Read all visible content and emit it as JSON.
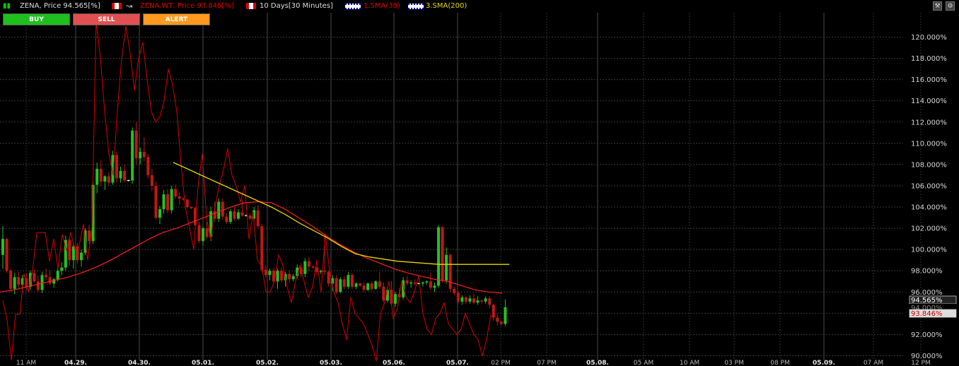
{
  "header": {
    "symbol_label": "ZENA, Price 94.565[%]",
    "compare_label": "ZENA.WT, Price 93.846[%]",
    "period_label": "10 Days[30 Minutes]",
    "indicator1_label": "1.SMA(38)",
    "indicator2_label": "3.SMA(200)",
    "colors": {
      "symbol": "#dddddd",
      "compare": "#e00000",
      "sma38": "#e00000",
      "sma200": "#e6d600"
    }
  },
  "buttons": {
    "buy": "BUY",
    "sell": "SELL",
    "alert": "ALERT"
  },
  "tools": {
    "wrench": "wrench-icon",
    "settings": "settings-icon"
  },
  "chart_data": {
    "type": "line",
    "y_unit": "%",
    "ylim": [
      89.5,
      121.5
    ],
    "y_ticks": [
      "90.000%",
      "92.000%",
      "94.000%",
      "96.000%",
      "98.000%",
      "100.000%",
      "102.000%",
      "104.000%",
      "106.000%",
      "108.000%",
      "110.000%",
      "112.000%",
      "114.000%",
      "116.000%",
      "118.000%",
      "120.000%"
    ],
    "x_ticks": [
      "11 AM",
      "04.29.",
      "04.30.",
      "05.01.",
      "05.02.",
      "05.03.",
      "05.06.",
      "05.07.",
      "02 PM",
      "07 PM",
      "05.08.",
      "05 AM",
      "10 AM",
      "03 PM",
      "08 PM",
      "05.09.",
      "07 AM",
      "12 PM"
    ],
    "grid": true,
    "last_price_labels": [
      "94.565%",
      "94.000%",
      "93.846%"
    ],
    "candles": [
      [
        99.5,
        102.2,
        98.2,
        101.0
      ],
      [
        101.0,
        101.1,
        97.8,
        98.0
      ],
      [
        98.0,
        98.2,
        96.0,
        96.3
      ],
      [
        96.3,
        97.8,
        95.8,
        97.4
      ],
      [
        97.4,
        97.9,
        96.4,
        96.7
      ],
      [
        96.7,
        97.6,
        96.0,
        97.3
      ],
      [
        97.3,
        97.8,
        96.2,
        96.5
      ],
      [
        96.5,
        98.0,
        96.2,
        97.8
      ],
      [
        97.8,
        98.1,
        96.9,
        97.0
      ],
      [
        97.0,
        97.5,
        96.0,
        96.2
      ],
      [
        96.2,
        97.9,
        95.9,
        97.6
      ],
      [
        97.6,
        98.2,
        97.1,
        97.4
      ],
      [
        97.4,
        98.0,
        96.6,
        96.8
      ],
      [
        96.8,
        97.3,
        96.4,
        97.2
      ],
      [
        97.2,
        98.3,
        97.0,
        98.0
      ],
      [
        98.0,
        98.8,
        97.6,
        98.3
      ],
      [
        98.3,
        101.3,
        98.0,
        100.9
      ],
      [
        100.9,
        101.2,
        98.5,
        99.0
      ],
      [
        99.0,
        100.5,
        98.2,
        100.3
      ],
      [
        100.3,
        100.6,
        98.7,
        99.0
      ],
      [
        99.0,
        100.0,
        98.4,
        99.7
      ],
      [
        99.7,
        102.0,
        99.5,
        101.8
      ],
      [
        101.8,
        102.3,
        100.5,
        100.8
      ],
      [
        100.8,
        106.4,
        100.5,
        106.1
      ],
      [
        106.1,
        108.2,
        105.3,
        107.6
      ],
      [
        107.6,
        108.4,
        106.0,
        106.4
      ],
      [
        106.4,
        107.0,
        105.6,
        106.9
      ],
      [
        106.9,
        107.3,
        106.0,
        106.3
      ],
      [
        106.3,
        109.3,
        106.1,
        108.9
      ],
      [
        108.9,
        109.2,
        106.3,
        106.7
      ],
      [
        106.7,
        107.8,
        106.3,
        107.4
      ],
      [
        107.4,
        108.0,
        106.3,
        106.5
      ],
      [
        106.5,
        106.6,
        106.4,
        106.5
      ],
      [
        106.5,
        111.5,
        106.2,
        111.2
      ],
      [
        111.2,
        112.0,
        108.0,
        108.6
      ],
      [
        108.6,
        109.6,
        108.0,
        109.2
      ],
      [
        109.2,
        110.6,
        108.3,
        108.7
      ],
      [
        108.7,
        109.0,
        106.7,
        107.0
      ],
      [
        107.0,
        107.6,
        105.5,
        106.0
      ],
      [
        106.0,
        106.4,
        102.8,
        103.0
      ],
      [
        103.0,
        104.1,
        102.4,
        103.8
      ],
      [
        103.8,
        105.6,
        103.4,
        105.2
      ],
      [
        105.2,
        105.7,
        103.4,
        103.7
      ],
      [
        103.7,
        106.0,
        103.4,
        105.7
      ],
      [
        105.7,
        106.1,
        104.8,
        105.0
      ],
      [
        105.0,
        105.4,
        104.2,
        104.8
      ],
      [
        104.8,
        104.9,
        104.6,
        104.7
      ],
      [
        104.7,
        104.8,
        103.9,
        104.0
      ],
      [
        104.0,
        104.1,
        103.8,
        103.9
      ],
      [
        103.9,
        104.0,
        102.1,
        102.3
      ],
      [
        102.3,
        102.6,
        100.6,
        100.8
      ],
      [
        100.8,
        102.2,
        100.4,
        102.0
      ],
      [
        102.0,
        102.6,
        101.0,
        101.2
      ],
      [
        101.2,
        104.0,
        100.8,
        103.6
      ],
      [
        103.6,
        104.5,
        102.6,
        102.9
      ],
      [
        102.9,
        104.8,
        102.6,
        104.5
      ],
      [
        104.5,
        104.8,
        102.8,
        103.1
      ],
      [
        103.1,
        103.4,
        102.4,
        102.6
      ],
      [
        102.6,
        103.8,
        102.4,
        103.6
      ],
      [
        103.6,
        104.0,
        102.7,
        102.9
      ],
      [
        102.9,
        103.8,
        102.8,
        103.5
      ],
      [
        103.5,
        104.6,
        103.1,
        103.2
      ],
      [
        103.2,
        103.3,
        103.1,
        103.2
      ],
      [
        103.2,
        103.4,
        102.8,
        102.9
      ],
      [
        102.9,
        104.0,
        102.6,
        103.7
      ],
      [
        103.7,
        104.2,
        102.0,
        102.2
      ],
      [
        102.2,
        102.4,
        97.9,
        98.1
      ],
      [
        98.1,
        98.5,
        97.3,
        97.6
      ],
      [
        97.6,
        98.2,
        97.1,
        98.0
      ],
      [
        98.0,
        98.3,
        96.8,
        97.0
      ],
      [
        97.0,
        98.2,
        96.3,
        98.0
      ],
      [
        98.0,
        98.3,
        96.9,
        97.1
      ],
      [
        97.1,
        97.9,
        96.5,
        97.7
      ],
      [
        97.7,
        98.0,
        96.9,
        97.2
      ],
      [
        97.2,
        97.7,
        97.0,
        97.5
      ],
      [
        97.5,
        98.6,
        97.3,
        98.3
      ],
      [
        98.3,
        98.7,
        97.4,
        97.7
      ],
      [
        97.7,
        99.2,
        97.4,
        98.9
      ],
      [
        98.9,
        99.3,
        98.0,
        98.4
      ],
      [
        98.4,
        98.5,
        98.2,
        98.3
      ],
      [
        98.3,
        98.4,
        97.6,
        97.9
      ],
      [
        97.9,
        98.1,
        97.7,
        98.0
      ],
      [
        98.0,
        101.5,
        97.6,
        97.9
      ],
      [
        97.9,
        98.0,
        96.5,
        96.8
      ],
      [
        96.8,
        97.6,
        96.1,
        97.3
      ],
      [
        97.3,
        97.6,
        95.8,
        96.0
      ],
      [
        96.0,
        97.4,
        95.9,
        97.2
      ],
      [
        97.2,
        97.5,
        96.3,
        96.5
      ],
      [
        96.5,
        97.9,
        96.3,
        97.6
      ],
      [
        97.6,
        97.8,
        96.3,
        96.5
      ],
      [
        96.5,
        96.9,
        96.3,
        96.8
      ],
      [
        96.8,
        96.9,
        96.5,
        96.6
      ],
      [
        96.6,
        96.9,
        96.0,
        96.2
      ],
      [
        96.2,
        96.9,
        96.1,
        96.8
      ],
      [
        96.8,
        97.0,
        96.1,
        96.3
      ],
      [
        96.3,
        97.1,
        96.2,
        97.0
      ],
      [
        97.0,
        97.9,
        96.3,
        96.5
      ],
      [
        96.5,
        96.9,
        95.0,
        95.2
      ],
      [
        95.2,
        96.4,
        95.0,
        96.2
      ],
      [
        96.2,
        97.0,
        94.7,
        94.9
      ],
      [
        94.9,
        96.0,
        94.6,
        95.8
      ],
      [
        95.8,
        96.4,
        95.3,
        95.5
      ],
      [
        95.5,
        97.4,
        95.3,
        97.1
      ],
      [
        97.1,
        97.5,
        96.6,
        96.8
      ],
      [
        96.8,
        97.1,
        96.4,
        96.9
      ],
      [
        96.9,
        97.2,
        96.6,
        96.8
      ],
      [
        96.8,
        96.9,
        96.7,
        96.8
      ],
      [
        96.8,
        97.0,
        96.5,
        96.9
      ],
      [
        96.9,
        97.1,
        96.7,
        97.0
      ],
      [
        97.0,
        97.8,
        96.2,
        96.4
      ],
      [
        96.4,
        96.9,
        96.0,
        96.6
      ],
      [
        96.6,
        102.3,
        96.4,
        102.1
      ],
      [
        102.1,
        102.2,
        96.9,
        97.1
      ],
      [
        97.1,
        100.2,
        96.8,
        99.5
      ],
      [
        99.5,
        99.6,
        96.0,
        96.3
      ],
      [
        96.3,
        96.5,
        95.7,
        95.9
      ],
      [
        95.9,
        96.1,
        94.9,
        95.1
      ],
      [
        95.1,
        95.7,
        94.8,
        95.5
      ],
      [
        95.5,
        95.6,
        94.9,
        95.1
      ],
      [
        95.1,
        95.7,
        94.9,
        95.4
      ],
      [
        95.4,
        95.8,
        94.9,
        95.0
      ],
      [
        95.0,
        95.6,
        94.8,
        95.2
      ],
      [
        95.2,
        95.3,
        94.9,
        95.1
      ],
      [
        95.1,
        95.6,
        94.9,
        95.4
      ],
      [
        95.4,
        95.6,
        94.5,
        94.8
      ],
      [
        94.8,
        94.9,
        93.3,
        93.6
      ],
      [
        93.6,
        94.0,
        92.8,
        93.2
      ],
      [
        93.2,
        93.3,
        92.8,
        93.0
      ],
      [
        93.0,
        95.3,
        92.8,
        94.565
      ]
    ],
    "series": [
      {
        "name": "ZENA.WT",
        "values": [
          95.2,
          93.4,
          89.6,
          93.9,
          93.9,
          97.7,
          96.0,
          98.0,
          101.6,
          101.6,
          101.6,
          98.9,
          101.0,
          98.2,
          101.4,
          99.9,
          101.6,
          100.0,
          100.4,
          102.4,
          99.0,
          102.0,
          121.5,
          118.0,
          113.0,
          109.0,
          107.0,
          113.0,
          118.0,
          121.0,
          118.5,
          115.0,
          118.0,
          119.5,
          116.0,
          113.0,
          112.0,
          112.5,
          114.0,
          117.0,
          115.5,
          113.0,
          108.0,
          104.0,
          102.0,
          100.0,
          106.0,
          109.0,
          103.0,
          101.0,
          104.0,
          106.0,
          107.5,
          109.5,
          107.0,
          106.0,
          104.5,
          106.0,
          101.0,
          103.5,
          99.0,
          98.5,
          96.0,
          96.0,
          97.0,
          99.5,
          98.5,
          96.5,
          95.0,
          97.0,
          98.5,
          97.0,
          95.5,
          96.5,
          99.0,
          96.0,
          101.5,
          98.0,
          96.0,
          95.0,
          93.0,
          91.5,
          95.5,
          94.0,
          93.5,
          93.0,
          92.0,
          91.0,
          89.5,
          94.0,
          95.0,
          97.0,
          93.5,
          94.5,
          97.0,
          95.5,
          95.0,
          96.0,
          97.5,
          94.0,
          92.5,
          92.0,
          93.5,
          94.0,
          95.0,
          93.0,
          92.5,
          92.0,
          92.5,
          94.0,
          93.0,
          92.0,
          91.5,
          90.0,
          91.5,
          93.846
        ]
      },
      {
        "name": "1.SMA(38)",
        "values": [
          96.0,
          96.2,
          96.5,
          96.8,
          97.1,
          97.4,
          97.8,
          98.3,
          98.9,
          99.6,
          100.3,
          101.0,
          101.6,
          102.0,
          102.5,
          103.0,
          103.5,
          104.0,
          104.4,
          104.5,
          104.4,
          103.8,
          103.0,
          102.2,
          101.3,
          100.5,
          99.8,
          99.2,
          98.7,
          98.2,
          97.8,
          97.5,
          97.2,
          97.0,
          96.6,
          96.2,
          96.0,
          95.9
        ]
      },
      {
        "name": "3.SMA(200)",
        "values": [
          108.2,
          107.6,
          107.0,
          106.4,
          105.8,
          105.2,
          104.6,
          104.0,
          103.3,
          102.5,
          101.8,
          101.1,
          100.3,
          99.6,
          99.3,
          99.1,
          98.9,
          98.8,
          98.7,
          98.6,
          98.6,
          98.6,
          98.6,
          98.6,
          98.6
        ]
      }
    ]
  }
}
